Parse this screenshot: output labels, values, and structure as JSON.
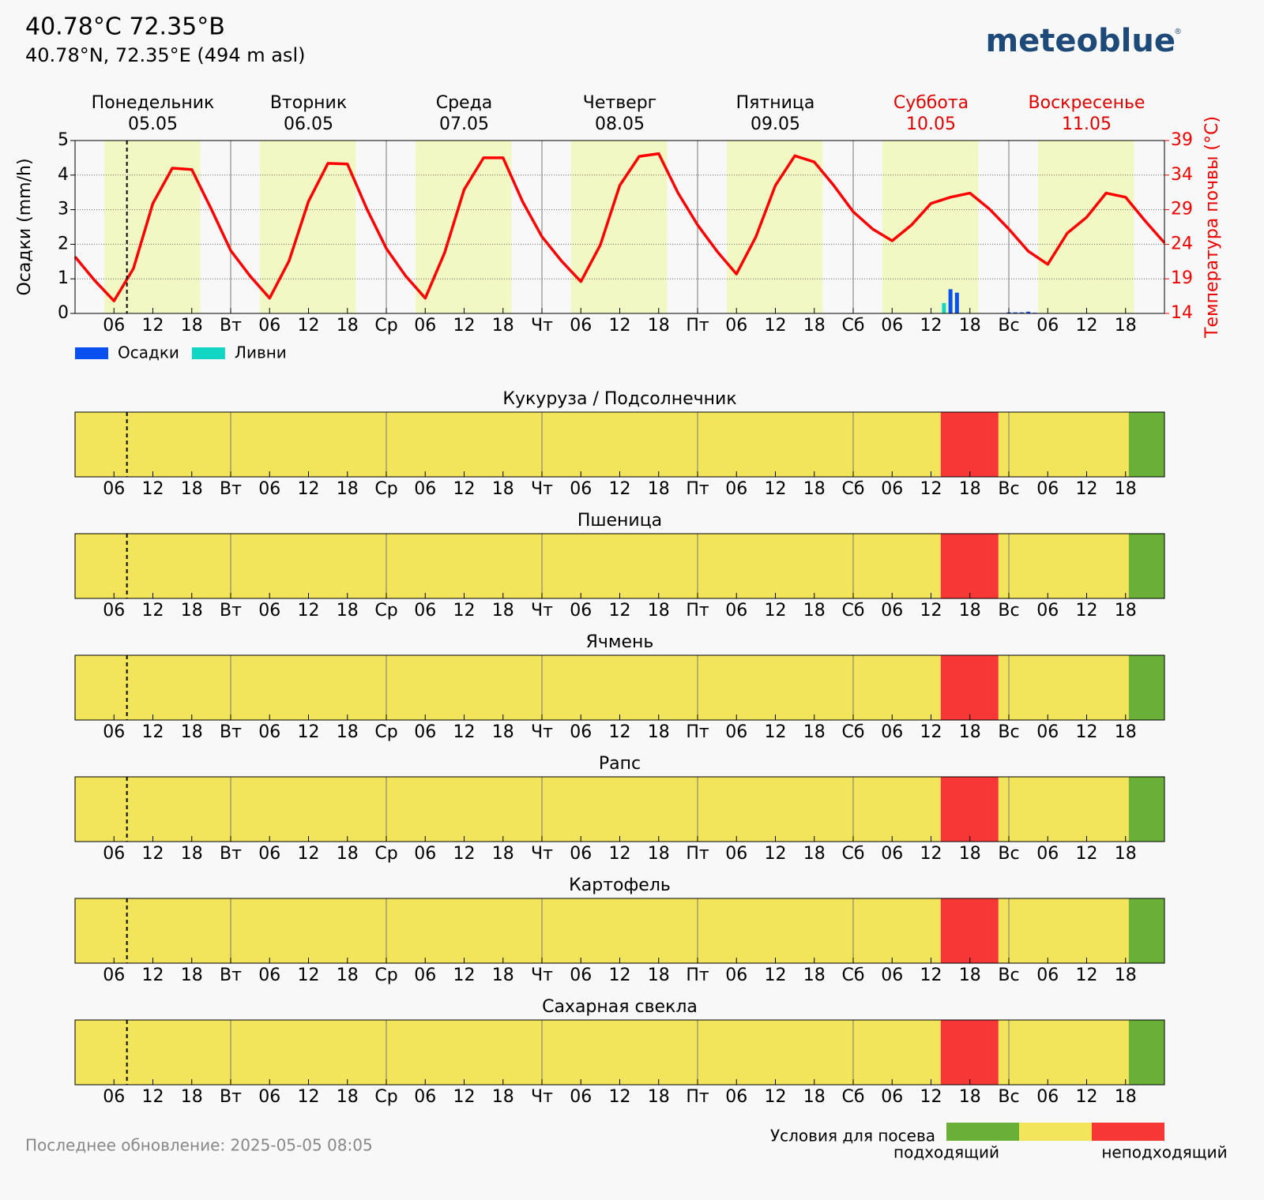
{
  "header": {
    "title": "40.78°C 72.35°B",
    "subtitle": "40.78°N, 72.35°E (494 m asl)",
    "logo": "meteoblue",
    "logo_mark": "®"
  },
  "footer": {
    "update": "Последнее обновление: 2025-05-05 08:05"
  },
  "chart_data": [
    {
      "type": "bar_line",
      "xlim": [
        0,
        168
      ],
      "xticks": [
        {
          "value": 6,
          "label": "06"
        },
        {
          "value": 12,
          "label": "12"
        },
        {
          "value": 18,
          "label": "18"
        },
        {
          "value": 24,
          "label": "Вт"
        },
        {
          "value": 30,
          "label": "06"
        },
        {
          "value": 36,
          "label": "12"
        },
        {
          "value": 42,
          "label": "18"
        },
        {
          "value": 48,
          "label": "Ср"
        },
        {
          "value": 54,
          "label": "06"
        },
        {
          "value": 60,
          "label": "12"
        },
        {
          "value": 66,
          "label": "18"
        },
        {
          "value": 72,
          "label": "Чт"
        },
        {
          "value": 78,
          "label": "06"
        },
        {
          "value": 84,
          "label": "12"
        },
        {
          "value": 90,
          "label": "18"
        },
        {
          "value": 96,
          "label": "Пт"
        },
        {
          "value": 102,
          "label": "06"
        },
        {
          "value": 108,
          "label": "12"
        },
        {
          "value": 114,
          "label": "18"
        },
        {
          "value": 120,
          "label": "Сб"
        },
        {
          "value": 126,
          "label": "06"
        },
        {
          "value": 132,
          "label": "12"
        },
        {
          "value": 138,
          "label": "18"
        },
        {
          "value": 144,
          "label": "Вс"
        },
        {
          "value": 150,
          "label": "06"
        },
        {
          "value": 156,
          "label": "12"
        },
        {
          "value": 162,
          "label": "18"
        }
      ],
      "ylim": [
        0,
        5
      ],
      "yticks": [
        0,
        1,
        2,
        3,
        4,
        5
      ],
      "y2lim": [
        14,
        39
      ],
      "y2ticks": [
        14,
        19,
        24,
        29,
        34,
        39
      ],
      "ylabel": "Осадки (mm/h)",
      "y2label": "Температура почвы (°C)",
      "grid": true,
      "now": 8,
      "days": [
        {
          "name": "Понедельник",
          "date": "05.05",
          "start": 0,
          "color": "#000000"
        },
        {
          "name": "Вторник",
          "date": "06.05",
          "start": 24,
          "color": "#000000"
        },
        {
          "name": "Среда",
          "date": "07.05",
          "start": 48,
          "color": "#000000"
        },
        {
          "name": "Четверг",
          "date": "08.05",
          "start": 72,
          "color": "#000000"
        },
        {
          "name": "Пятница",
          "date": "09.05",
          "start": 96,
          "color": "#000000"
        },
        {
          "name": "Суббота",
          "date": "10.05",
          "start": 120,
          "color": "#dd0000"
        },
        {
          "name": "Воскресенье",
          "date": "11.05",
          "start": 144,
          "color": "#dd0000"
        }
      ],
      "daylight": [
        [
          4.5,
          19.3
        ],
        [
          28.5,
          43.3
        ],
        [
          52.5,
          67.3
        ],
        [
          76.5,
          91.3
        ],
        [
          100.5,
          115.3
        ],
        [
          124.5,
          139.3
        ],
        [
          148.5,
          163.3
        ]
      ],
      "series": [
        {
          "name": "Осадки",
          "type": "bar",
          "color": "#0a50f0",
          "x": [
            135,
            136,
            144,
            145,
            146,
            147,
            148
          ],
          "values": [
            0.7,
            0.6,
            0.03,
            0.03,
            0.03,
            0.05,
            0.02
          ]
        },
        {
          "name": "Ливни",
          "type": "bar",
          "color": "#12d6c4",
          "x": [
            134
          ],
          "values": [
            0.3
          ]
        },
        {
          "type": "line",
          "axis": "y2",
          "color": "#ff0000",
          "x": [
            0,
            3,
            6,
            9,
            12,
            15,
            18,
            21,
            24,
            27,
            30,
            33,
            36,
            39,
            42,
            45,
            48,
            51,
            54,
            57,
            60,
            63,
            66,
            69,
            72,
            75,
            78,
            81,
            84,
            87,
            90,
            93,
            96,
            99,
            102,
            105,
            108,
            111,
            114,
            117,
            120,
            123,
            126,
            129,
            132,
            135,
            138,
            141,
            144,
            147,
            150,
            153,
            156,
            159,
            162,
            165,
            168
          ],
          "values": [
            22.2,
            18.8,
            15.8,
            20.5,
            29.9,
            35.0,
            34.8,
            29.1,
            23.1,
            19.4,
            16.2,
            21.6,
            30.2,
            35.7,
            35.6,
            29.1,
            23.4,
            19.4,
            16.2,
            22.8,
            31.9,
            36.5,
            36.5,
            30.2,
            25.1,
            21.6,
            18.6,
            23.9,
            32.5,
            36.7,
            37.1,
            31.4,
            26.8,
            23.0,
            19.7,
            25.1,
            32.5,
            36.8,
            35.9,
            32.5,
            28.7,
            26.2,
            24.5,
            26.8,
            29.9,
            30.8,
            31.4,
            29.1,
            26.2,
            23.0,
            21.1,
            25.6,
            27.9,
            31.4,
            30.8,
            27.4,
            24.2
          ]
        }
      ]
    },
    {
      "type": "strip",
      "xlim": [
        0,
        168
      ],
      "now": 8,
      "crops": [
        {
          "name": "Кукуруза / Подсолнечник",
          "segments": [
            {
              "start": 0,
              "end": 133.5,
              "color": "#f2e55c"
            },
            {
              "start": 133.5,
              "end": 142.4,
              "color": "#f73636"
            },
            {
              "start": 142.4,
              "end": 162.5,
              "color": "#f2e55c"
            },
            {
              "start": 162.5,
              "end": 168,
              "color": "#6aaf38"
            }
          ]
        },
        {
          "name": "Пшеница",
          "segments": [
            {
              "start": 0,
              "end": 133.5,
              "color": "#f2e55c"
            },
            {
              "start": 133.5,
              "end": 142.4,
              "color": "#f73636"
            },
            {
              "start": 142.4,
              "end": 162.5,
              "color": "#f2e55c"
            },
            {
              "start": 162.5,
              "end": 168,
              "color": "#6aaf38"
            }
          ]
        },
        {
          "name": "Ячмень",
          "segments": [
            {
              "start": 0,
              "end": 133.5,
              "color": "#f2e55c"
            },
            {
              "start": 133.5,
              "end": 142.4,
              "color": "#f73636"
            },
            {
              "start": 142.4,
              "end": 162.5,
              "color": "#f2e55c"
            },
            {
              "start": 162.5,
              "end": 168,
              "color": "#6aaf38"
            }
          ]
        },
        {
          "name": "Рапс",
          "segments": [
            {
              "start": 0,
              "end": 133.5,
              "color": "#f2e55c"
            },
            {
              "start": 133.5,
              "end": 142.4,
              "color": "#f73636"
            },
            {
              "start": 142.4,
              "end": 162.5,
              "color": "#f2e55c"
            },
            {
              "start": 162.5,
              "end": 168,
              "color": "#6aaf38"
            }
          ]
        },
        {
          "name": "Картофель",
          "segments": [
            {
              "start": 0,
              "end": 133.5,
              "color": "#f2e55c"
            },
            {
              "start": 133.5,
              "end": 142.4,
              "color": "#f73636"
            },
            {
              "start": 142.4,
              "end": 162.5,
              "color": "#f2e55c"
            },
            {
              "start": 162.5,
              "end": 168,
              "color": "#6aaf38"
            }
          ]
        },
        {
          "name": "Сахарная свекла",
          "segments": [
            {
              "start": 0,
              "end": 133.5,
              "color": "#f2e55c"
            },
            {
              "start": 133.5,
              "end": 142.4,
              "color": "#f73636"
            },
            {
              "start": 142.4,
              "end": 162.5,
              "color": "#f2e55c"
            },
            {
              "start": 162.5,
              "end": 168,
              "color": "#6aaf38"
            }
          ]
        }
      ],
      "legend": {
        "title": "Условия для посева",
        "colors": [
          "#6aaf38",
          "#f2e55c",
          "#f73636"
        ],
        "labels": [
          "подходящий",
          "неподходящий"
        ]
      }
    }
  ]
}
